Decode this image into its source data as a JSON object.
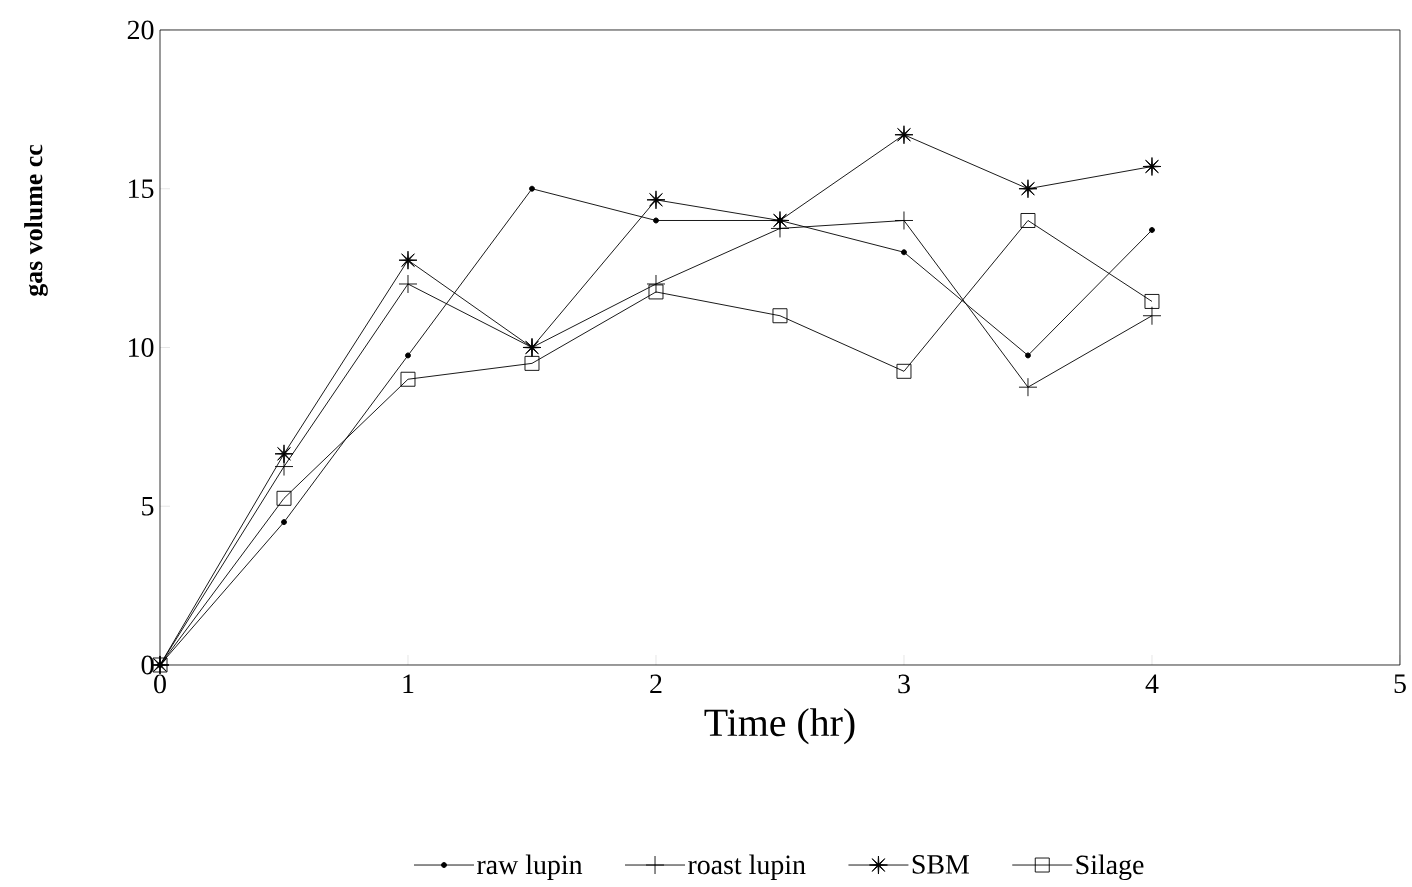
{
  "chart_data": {
    "type": "line",
    "xlabel": "Time (hr)",
    "ylabel": "gas volume cc",
    "x": [
      0,
      0.5,
      1,
      1.5,
      2,
      2.5,
      3,
      3.5,
      4
    ],
    "series": [
      {
        "name": "raw lupin",
        "color": "#000000",
        "marker": "circle",
        "values": [
          0,
          4.5,
          9.75,
          15,
          14,
          14,
          13,
          9.75,
          13.7
        ]
      },
      {
        "name": "roast lupin",
        "color": "#000000",
        "marker": "cross",
        "values": [
          0,
          6.25,
          12,
          10,
          12,
          13.75,
          14,
          8.75,
          11
        ]
      },
      {
        "name": "SBM",
        "color": "#000000",
        "marker": "star",
        "values": [
          0,
          6.65,
          12.75,
          10,
          14.65,
          14,
          16.7,
          15,
          15.7
        ]
      },
      {
        "name": "Silage",
        "color": "#000000",
        "marker": "square",
        "values": [
          0,
          5.25,
          9,
          9.5,
          11.75,
          11,
          9.25,
          14,
          11.45
        ]
      }
    ],
    "xlim": [
      0,
      5
    ],
    "ylim": [
      0,
      20
    ],
    "xticks": [
      0,
      1,
      2,
      3,
      4,
      5
    ],
    "yticks": [
      0,
      5,
      10,
      15,
      20
    ],
    "grid": false,
    "legend": "bottom",
    "line_style": "solid"
  }
}
